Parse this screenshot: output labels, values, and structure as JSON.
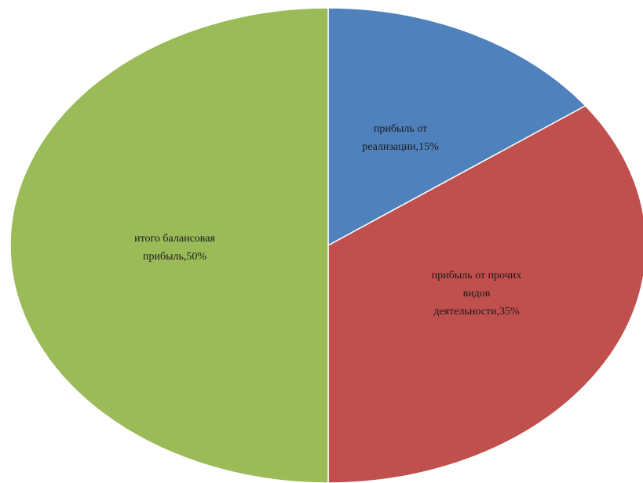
{
  "chart_data": {
    "type": "pie",
    "categories": [
      "прибыль от реализации",
      "прибыль от прочих видов деятельности",
      "итого балансовая прибыль"
    ],
    "values": [
      15,
      35,
      50
    ],
    "unit": "%",
    "colors": [
      "#4f81bd",
      "#c0504d",
      "#9bbb59"
    ],
    "start_angle": "12 o'clock",
    "direction": "clockwise",
    "legend": "none"
  }
}
